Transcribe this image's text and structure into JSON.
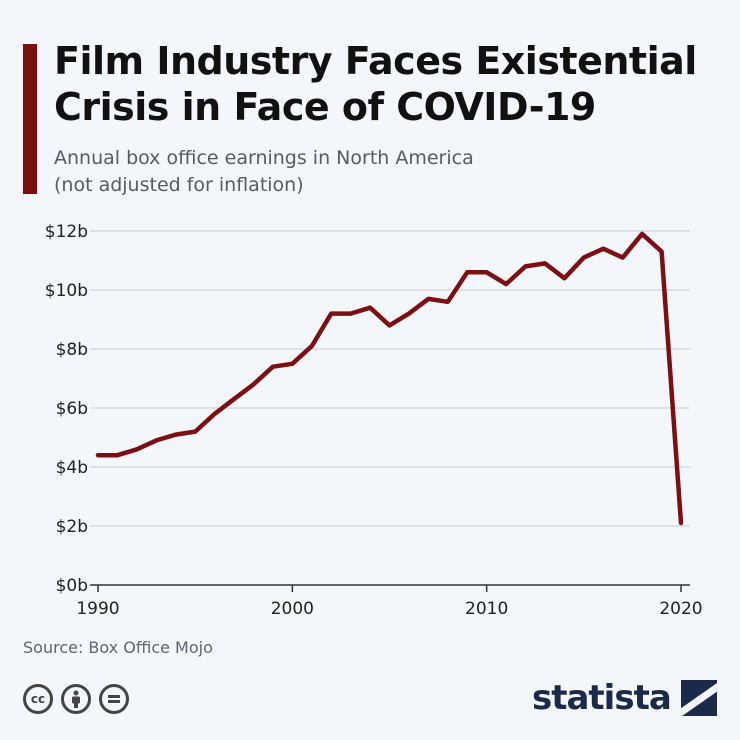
{
  "header": {
    "title": "Film Industry Faces Existential Crisis in Face of COVID-19",
    "subtitle_line1": "Annual box office earnings in North America",
    "subtitle_line2": "(not adjusted for inflation)"
  },
  "chart_data": {
    "type": "line",
    "title": "Film Industry Faces Existential Crisis in Face of COVID-19",
    "subtitle": "Annual box office earnings in North America (not adjusted for inflation)",
    "xlabel": "",
    "ylabel": "",
    "x": [
      1990,
      1991,
      1992,
      1993,
      1994,
      1995,
      1996,
      1997,
      1998,
      1999,
      2000,
      2001,
      2002,
      2003,
      2004,
      2005,
      2006,
      2007,
      2008,
      2009,
      2010,
      2011,
      2012,
      2013,
      2014,
      2015,
      2016,
      2017,
      2018,
      2019,
      2020
    ],
    "series": [
      {
        "values": [
          4.4,
          4.4,
          4.6,
          4.9,
          5.1,
          5.2,
          5.8,
          6.3,
          6.8,
          7.4,
          7.5,
          8.1,
          9.2,
          9.2,
          9.4,
          8.8,
          9.2,
          9.7,
          9.6,
          10.6,
          10.6,
          10.2,
          10.8,
          10.9,
          10.4,
          11.1,
          11.4,
          11.1,
          11.9,
          11.3,
          2.1
        ],
        "color": "#7d0f12"
      }
    ],
    "xlim": [
      1990,
      2020
    ],
    "ylim": [
      0,
      12
    ],
    "x_ticks": [
      1990,
      2000,
      2010,
      2020
    ],
    "x_tick_labels": [
      "1990",
      "2000",
      "2010",
      "2020"
    ],
    "y_ticks": [
      0,
      2,
      4,
      6,
      8,
      10,
      12
    ],
    "y_tick_labels": [
      "$0b",
      "$2b",
      "$4b",
      "$6b",
      "$8b",
      "$10b",
      "$12b"
    ],
    "grid": true
  },
  "footer": {
    "source": "Source: Box Office Mojo",
    "brand": "statista"
  },
  "icons": [
    "cc-icon",
    "attribution-icon",
    "no-derivatives-icon",
    "statista-logo-icon"
  ],
  "colors": {
    "accent": "#7d0f12",
    "line": "#7d0f12",
    "brand": "#1b2a4a",
    "background": "#f3f6fa"
  }
}
